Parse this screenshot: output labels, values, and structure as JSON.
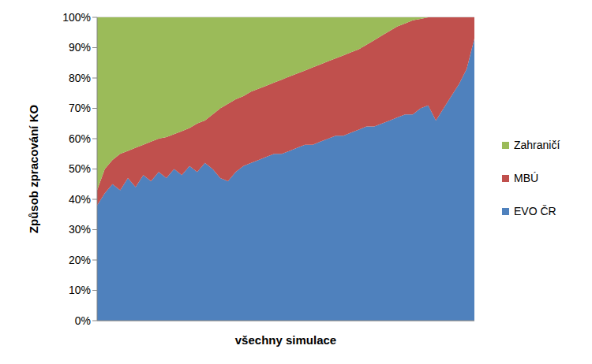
{
  "chart_data": {
    "type": "area",
    "stacked": true,
    "grid": true,
    "legend": "right",
    "tick_labels": "y",
    "x_label": "všechny simulace",
    "y_label": "Způsob zpracování KO",
    "categories": [
      null,
      null,
      null,
      null,
      null,
      null,
      null,
      null,
      null,
      null,
      null,
      null,
      null,
      null,
      null,
      null,
      null,
      null,
      null,
      null,
      null,
      null,
      null,
      null,
      null,
      null,
      null,
      null,
      null,
      null,
      null,
      null,
      null,
      null,
      null,
      null,
      null,
      null,
      null,
      null,
      null,
      null,
      null,
      null,
      null,
      null,
      null,
      null,
      null,
      null
    ],
    "ylim": [
      0,
      100
    ],
    "yticks": [
      {
        "value": 0,
        "label": "0%"
      },
      {
        "value": 10,
        "label": "10%"
      },
      {
        "value": 20,
        "label": "20%"
      },
      {
        "value": 30,
        "label": "30%"
      },
      {
        "value": 40,
        "label": "40%"
      },
      {
        "value": 50,
        "label": "50%"
      },
      {
        "value": 60,
        "label": "60%"
      },
      {
        "value": 70,
        "label": "70%"
      },
      {
        "value": 80,
        "label": "80%"
      },
      {
        "value": 90,
        "label": "90%"
      },
      {
        "value": 100,
        "label": "100%"
      }
    ],
    "series": [
      {
        "name": "EVO ČR",
        "color": "#4f81bd",
        "values": [
          38,
          42,
          45,
          43,
          47,
          44,
          48,
          46,
          49,
          47,
          50,
          48,
          51,
          49,
          52,
          50,
          47,
          46,
          49,
          51,
          52,
          53,
          54,
          55,
          55,
          56,
          57,
          58,
          58,
          59,
          60,
          61,
          61,
          62,
          63,
          64,
          64,
          65,
          66,
          67,
          68,
          68,
          70,
          71,
          66,
          70,
          74,
          78,
          83,
          93
        ]
      },
      {
        "name": "MBÚ",
        "color": "#c0504d",
        "values": [
          5,
          8,
          8,
          12,
          9,
          13,
          10,
          13,
          11,
          13.5,
          11.5,
          14.5,
          12.5,
          16,
          14,
          18,
          23,
          25.5,
          24,
          23,
          23.5,
          23.5,
          23.5,
          23.5,
          24.5,
          24.5,
          24.5,
          24.5,
          25.5,
          25.5,
          25.5,
          25.5,
          26.5,
          26.5,
          26.5,
          27,
          28.5,
          29,
          29.5,
          30,
          30,
          31,
          29.5,
          29,
          34,
          30,
          26,
          22,
          17,
          7
        ]
      },
      {
        "name": "Zahraničí",
        "color": "#9bbb59",
        "values": [
          57,
          50,
          47,
          45,
          44,
          43,
          42,
          41,
          40,
          39.5,
          38.5,
          37.5,
          36.5,
          35,
          34,
          32,
          30,
          28.5,
          27,
          26,
          24.5,
          23.5,
          22.5,
          21.5,
          20.5,
          19.5,
          18.5,
          17.5,
          16.5,
          15.5,
          14.5,
          13.5,
          12.5,
          11.5,
          10.5,
          9,
          7.5,
          6,
          4.5,
          3,
          2,
          1,
          0.5,
          0,
          0,
          0,
          0,
          0,
          0,
          0
        ]
      }
    ]
  }
}
